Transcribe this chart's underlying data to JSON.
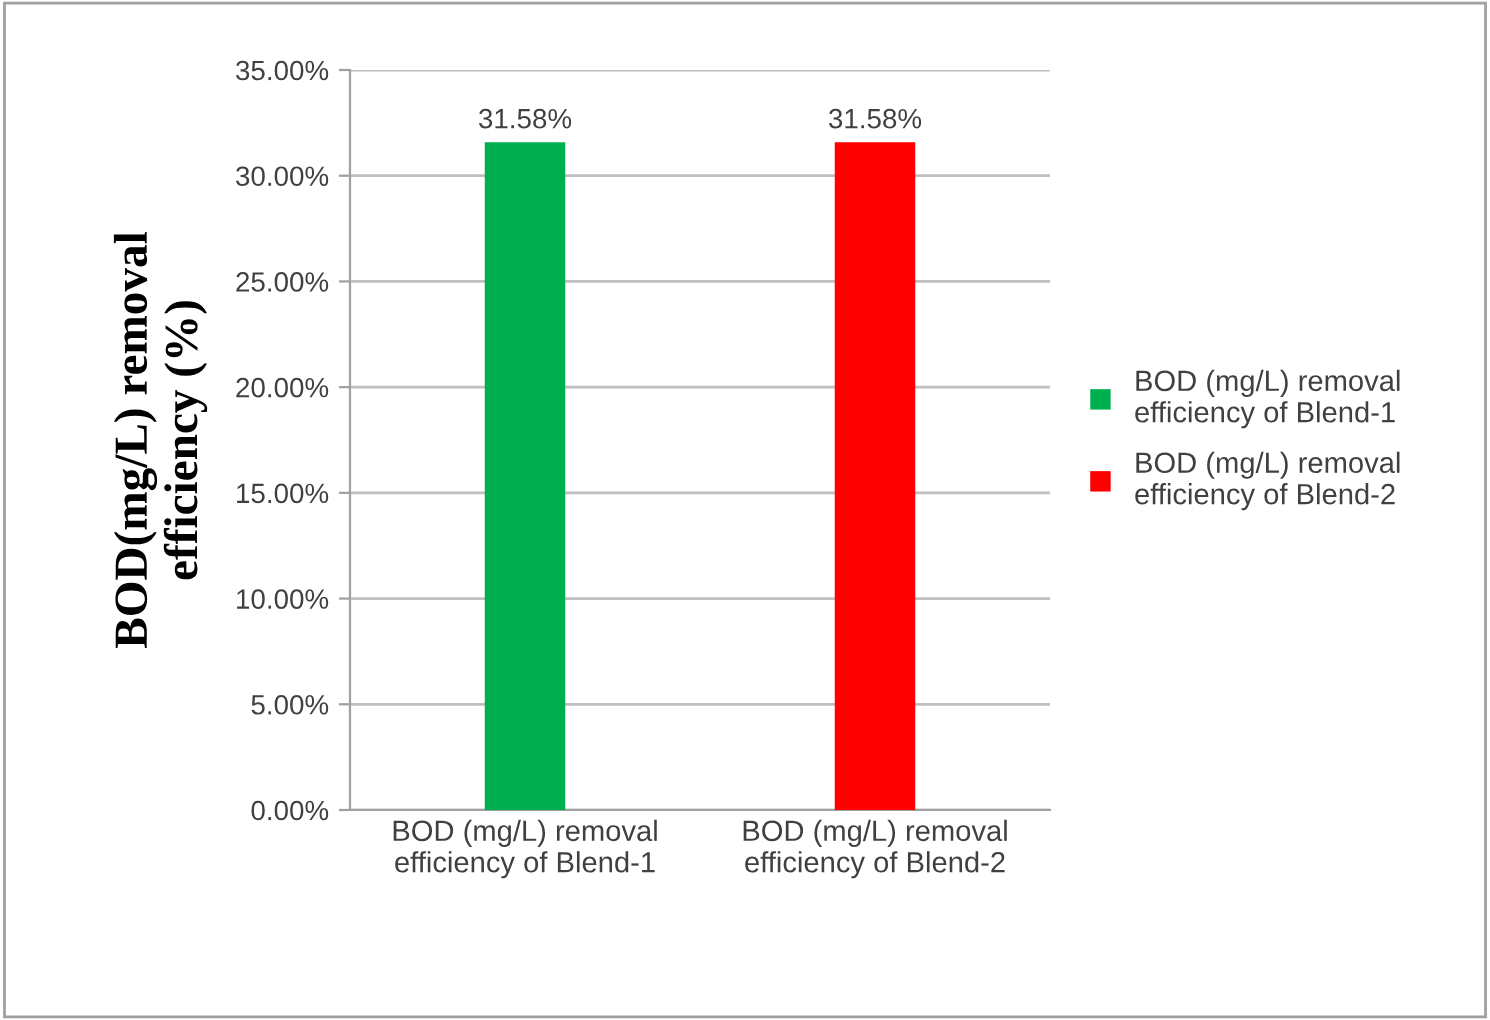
{
  "chart_data": {
    "type": "bar",
    "ylabel": "BOD(mg/L) removal\nefficiency (%)",
    "categories": [
      "BOD (mg/L) removal\nefficiency of Blend-1",
      "BOD (mg/L) removal\nefficiency of Blend-2"
    ],
    "series": [
      {
        "name": "BOD (mg/L) removal\nefficiency of Blend-1",
        "color": "#00b050",
        "values": [
          31.58,
          null
        ],
        "value_labels": [
          "31.58%",
          null
        ]
      },
      {
        "name": "BOD (mg/L) removal\nefficiency of Blend-2",
        "color": "#ff0000",
        "values": [
          null,
          31.58
        ],
        "value_labels": [
          null,
          "31.58%"
        ]
      }
    ],
    "ylim": [
      0,
      35
    ],
    "yticks": [
      {
        "value": 0,
        "label": "0.00%"
      },
      {
        "value": 5,
        "label": "5.00%"
      },
      {
        "value": 10,
        "label": "10.00%"
      },
      {
        "value": 15,
        "label": "15.00%"
      },
      {
        "value": 20,
        "label": "20.00%"
      },
      {
        "value": 25,
        "label": "25.00%"
      },
      {
        "value": 30,
        "label": "30.00%"
      },
      {
        "value": 35,
        "label": "35.00%"
      }
    ],
    "grid": "y",
    "legend": "right"
  }
}
